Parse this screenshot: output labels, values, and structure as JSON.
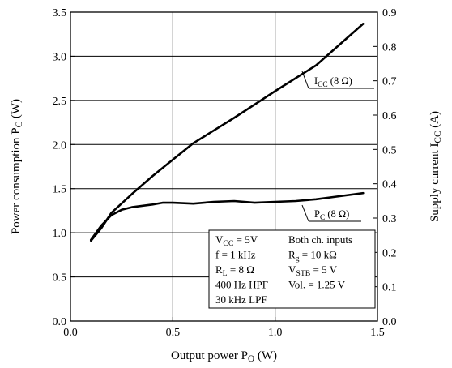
{
  "chart_data": {
    "type": "line",
    "xlabel": {
      "main": "Output power  P",
      "sub": "O",
      "unit": "(W)"
    },
    "ylabel_left": {
      "main": "Power consumption  P",
      "sub": "C",
      "unit": "(W)"
    },
    "ylabel_right": {
      "main": "Supply current  I",
      "sub": "CC",
      "unit": "(A)"
    },
    "xlim": [
      0.0,
      1.5
    ],
    "ylim_left": [
      0.0,
      3.5
    ],
    "ylim_right": [
      0.0,
      0.9
    ],
    "x_ticks": [
      "0.0",
      "0.5",
      "1.0",
      "1.5"
    ],
    "y_left_ticks": [
      "0.0",
      "0.5",
      "1.0",
      "1.5",
      "2.0",
      "2.5",
      "3.0",
      "3.5"
    ],
    "y_right_ticks": [
      "0.0",
      "0.1",
      "0.2",
      "0.3",
      "0.4",
      "0.5",
      "0.6",
      "0.7",
      "0.8",
      "0.9"
    ],
    "grid": true,
    "series": [
      {
        "name": "I_CC (8 Ω)",
        "label_main": "I",
        "label_sub": "CC",
        "label_rest": " (8 Ω)",
        "axis": "right",
        "x": [
          0.1,
          0.15,
          0.2,
          0.3,
          0.4,
          0.5,
          0.6,
          0.8,
          1.0,
          1.2,
          1.43
        ],
        "y": [
          0.234,
          0.27,
          0.315,
          0.37,
          0.422,
          0.47,
          0.518,
          0.592,
          0.67,
          0.745,
          0.866
        ]
      },
      {
        "name": "P_C (8 Ω)",
        "label_main": "P",
        "label_sub": "C",
        "label_rest": " (8 Ω)",
        "axis": "left",
        "x": [
          0.1,
          0.15,
          0.2,
          0.25,
          0.3,
          0.4,
          0.45,
          0.5,
          0.6,
          0.7,
          0.8,
          0.9,
          1.0,
          1.1,
          1.2,
          1.3,
          1.43
        ],
        "y": [
          0.92,
          1.08,
          1.2,
          1.26,
          1.29,
          1.32,
          1.34,
          1.34,
          1.33,
          1.35,
          1.36,
          1.34,
          1.35,
          1.36,
          1.38,
          1.41,
          1.45
        ]
      }
    ],
    "conditions": [
      {
        "col1": {
          "main": "V",
          "sub": "CC",
          "rest": " = 5V"
        },
        "col2": {
          "main": "Both ch. inputs",
          "sub": "",
          "rest": ""
        }
      },
      {
        "col1": {
          "main": "f = 1 kHz",
          "sub": "",
          "rest": ""
        },
        "col2": {
          "main": "R",
          "sub": "g",
          "rest": " = 10 kΩ"
        }
      },
      {
        "col1": {
          "main": "R",
          "sub": "L",
          "rest": " = 8 Ω"
        },
        "col2": {
          "main": "V",
          "sub": "STB",
          "rest": " = 5 V"
        }
      },
      {
        "col1": {
          "main": "400 Hz HPF",
          "sub": "",
          "rest": ""
        },
        "col2": {
          "main": "Vol. = 1.25 V",
          "sub": "",
          "rest": ""
        }
      },
      {
        "col1": {
          "main": "30 kHz LPF",
          "sub": "",
          "rest": ""
        },
        "col2": {
          "main": "",
          "sub": "",
          "rest": ""
        }
      }
    ]
  }
}
